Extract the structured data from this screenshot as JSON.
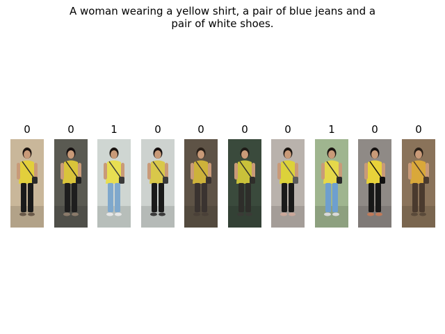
{
  "caption": {
    "line1": "A woman wearing a yellow shirt, a pair of blue jeans and a",
    "line2": "pair of white shoes."
  },
  "gallery": [
    {
      "label": "0",
      "bg": "#c9b79a",
      "shirt": "#e2cf3c",
      "pants": "#1a1a1a",
      "shoes": "#6a5a4a",
      "bag": "#2a2a2a",
      "hair": "#1c1410"
    },
    {
      "label": "0",
      "bg": "#5a5a52",
      "shirt": "#d9c43a",
      "pants": "#1e1e1e",
      "shoes": "#8a7a6a",
      "bag": "#222222",
      "hair": "#161010"
    },
    {
      "label": "1",
      "bg": "#cfd6d2",
      "shirt": "#e8de52",
      "pants": "#7fa8cc",
      "shoes": "#e6e6e6",
      "bag": "#3a3a3a",
      "hair": "#1a1410"
    },
    {
      "label": "0",
      "bg": "#cdd2cf",
      "shirt": "#d9c84a",
      "pants": "#1a1a1a",
      "shoes": "#3a3a3a",
      "bag": "#3a3a3a",
      "hair": "#161010"
    },
    {
      "label": "0",
      "bg": "#5e5346",
      "shirt": "#cdb23a",
      "pants": "#3a3330",
      "shoes": "#4a4038",
      "bag": "#3a3330",
      "hair": "#2a2018"
    },
    {
      "label": "0",
      "bg": "#3a4a3c",
      "shirt": "#c9c13a",
      "pants": "#2e2e2a",
      "shoes": "#3a3a36",
      "bag": "#2e2e2a",
      "hair": "#1e1a16"
    },
    {
      "label": "0",
      "bg": "#b9b2ac",
      "shirt": "#dcd23a",
      "pants": "#1a1a1a",
      "shoes": "#c9a79a",
      "bag": "#5a5a5a",
      "hair": "#1a1410"
    },
    {
      "label": "1",
      "bg": "#9fb58f",
      "shirt": "#e5d84a",
      "pants": "#6e9fcf",
      "shoes": "#d9d9d9",
      "bag": "#2a2a2a",
      "hair": "#1a1410"
    },
    {
      "label": "0",
      "bg": "#8f8a86",
      "shirt": "#e8d23a",
      "pants": "#181818",
      "shoes": "#c07a5a",
      "bag": "#101010",
      "hair": "#141010"
    },
    {
      "label": "0",
      "bg": "#8a735a",
      "shirt": "#d9a83a",
      "pants": "#4a3a2e",
      "shoes": "#5a4a3a",
      "bag": "#4a3a2e",
      "hair": "#2a2018"
    }
  ]
}
